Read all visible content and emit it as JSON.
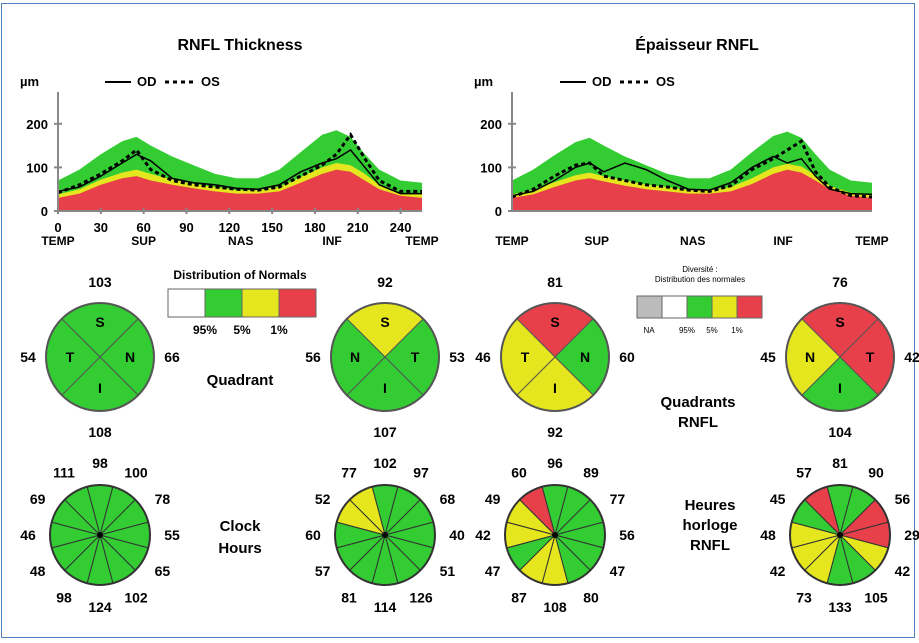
{
  "colors": {
    "green": "#33cc33",
    "yellow": "#e6e61e",
    "red": "#e8404a",
    "white": "#ffffff",
    "gray": "#bbbbbb",
    "border": "#4f81bd"
  },
  "chart_data": [
    {
      "type": "area",
      "title": "RNFL Thickness",
      "ylabel": "µm",
      "legend": [
        {
          "name": "OD",
          "style": "solid"
        },
        {
          "name": "OS",
          "style": "dotted"
        }
      ],
      "yticks": [
        "0",
        "100",
        "200"
      ],
      "ylim": [
        0,
        250
      ],
      "xlim": [
        0,
        255
      ],
      "xticks": [
        "0",
        "30",
        "60",
        "90",
        "120",
        "150",
        "180",
        "210",
        "240"
      ],
      "xtick_values": [
        0,
        30,
        60,
        90,
        120,
        150,
        180,
        210,
        240
      ],
      "xregions": [
        "TEMP",
        "SUP",
        "NAS",
        "INF",
        "TEMP"
      ],
      "xregion_values": [
        0,
        60,
        128,
        192,
        255
      ],
      "x": [
        0,
        15,
        30,
        45,
        55,
        65,
        80,
        95,
        110,
        125,
        140,
        155,
        170,
        185,
        195,
        205,
        215,
        225,
        240,
        255
      ],
      "bands": {
        "red_top": [
          30,
          40,
          60,
          75,
          80,
          70,
          60,
          52,
          45,
          40,
          40,
          45,
          65,
          85,
          95,
          90,
          70,
          50,
          35,
          30
        ],
        "yellow_top": [
          38,
          50,
          72,
          88,
          95,
          85,
          72,
          62,
          55,
          48,
          48,
          55,
          78,
          100,
          110,
          105,
          85,
          60,
          42,
          38
        ],
        "green_top": [
          70,
          95,
          130,
          160,
          170,
          150,
          125,
          105,
          85,
          75,
          75,
          95,
          135,
          175,
          185,
          170,
          130,
          95,
          70,
          65
        ]
      },
      "series": [
        {
          "name": "OD",
          "values": [
            45,
            55,
            80,
            110,
            130,
            115,
            75,
            65,
            60,
            52,
            50,
            60,
            90,
            110,
            120,
            140,
            100,
            60,
            40,
            40
          ]
        },
        {
          "name": "OS",
          "values": [
            42,
            60,
            85,
            115,
            140,
            95,
            70,
            60,
            55,
            50,
            48,
            55,
            80,
            105,
            130,
            175,
            120,
            70,
            45,
            45
          ]
        }
      ]
    },
    {
      "type": "area",
      "title": "Épaisseur RNFL",
      "ylabel": "µm",
      "legend": [
        {
          "name": "OD",
          "style": "solid"
        },
        {
          "name": "OS",
          "style": "dotted"
        }
      ],
      "yticks": [
        "0",
        "100",
        "200"
      ],
      "ylim": [
        0,
        250
      ],
      "xlim": [
        0,
        255
      ],
      "xticks": [],
      "xtick_values": [],
      "xregions": [
        "TEMP",
        "SUP",
        "NAS",
        "INF",
        "TEMP"
      ],
      "xregion_values": [
        0,
        60,
        128,
        192,
        255
      ],
      "x": [
        0,
        15,
        30,
        45,
        55,
        65,
        80,
        95,
        110,
        125,
        140,
        155,
        170,
        185,
        195,
        205,
        215,
        225,
        240,
        255
      ],
      "bands": {
        "red_top": [
          30,
          38,
          55,
          70,
          75,
          68,
          58,
          50,
          45,
          40,
          40,
          45,
          62,
          85,
          95,
          88,
          70,
          50,
          35,
          30
        ],
        "yellow_top": [
          38,
          48,
          66,
          82,
          88,
          80,
          70,
          60,
          55,
          48,
          48,
          55,
          75,
          100,
          108,
          102,
          82,
          58,
          42,
          38
        ],
        "green_top": [
          70,
          95,
          128,
          158,
          168,
          150,
          125,
          105,
          85,
          75,
          75,
          95,
          135,
          172,
          182,
          168,
          130,
          95,
          70,
          65
        ]
      },
      "series": [
        {
          "name": "OD",
          "values": [
            35,
            45,
            70,
            100,
            110,
            90,
            110,
            95,
            70,
            50,
            48,
            65,
            100,
            125,
            110,
            120,
            80,
            50,
            40,
            38
          ]
        },
        {
          "name": "OS",
          "values": [
            32,
            50,
            80,
            105,
            110,
            80,
            70,
            60,
            55,
            48,
            45,
            58,
            95,
            120,
            140,
            160,
            90,
            55,
            35,
            32
          ]
        }
      ]
    }
  ],
  "legend_normals": {
    "title": "Distribution of Normals",
    "labels": [
      "95%",
      "5%",
      "1%"
    ]
  },
  "legend_fr": {
    "title_line1": "Diversité :",
    "title_line2": "Distribution des normales",
    "labels": [
      "NA",
      "95%",
      "5%",
      "1%"
    ]
  },
  "side_labels": {
    "quadrant": "Quadrant",
    "clock_hours_1": "Clock",
    "clock_hours_2": "Hours",
    "quadrants_fr_1": "Quadrants",
    "quadrants_fr_2": "RNFL",
    "clock_fr_1": "Heures",
    "clock_fr_2": "horloge",
    "clock_fr_3": "RNFL"
  },
  "quadrants": [
    {
      "top": {
        "letter": "S",
        "value": "103",
        "color": "green"
      },
      "right": {
        "letter": "N",
        "value": "66",
        "color": "green"
      },
      "bottom": {
        "letter": "I",
        "value": "108",
        "color": "green"
      },
      "left": {
        "letter": "T",
        "value": "54",
        "color": "green"
      }
    },
    {
      "top": {
        "letter": "S",
        "value": "92",
        "color": "yellow"
      },
      "right": {
        "letter": "T",
        "value": "53",
        "color": "green"
      },
      "bottom": {
        "letter": "I",
        "value": "107",
        "color": "green"
      },
      "left": {
        "letter": "N",
        "value": "56",
        "color": "green"
      }
    },
    {
      "top": {
        "letter": "S",
        "value": "81",
        "color": "red"
      },
      "right": {
        "letter": "N",
        "value": "60",
        "color": "green"
      },
      "bottom": {
        "letter": "I",
        "value": "92",
        "color": "yellow"
      },
      "left": {
        "letter": "T",
        "value": "46",
        "color": "yellow"
      }
    },
    {
      "top": {
        "letter": "S",
        "value": "76",
        "color": "red"
      },
      "right": {
        "letter": "T",
        "value": "42",
        "color": "red"
      },
      "bottom": {
        "letter": "I",
        "value": "104",
        "color": "green"
      },
      "left": {
        "letter": "N",
        "value": "45",
        "color": "yellow"
      }
    }
  ],
  "clocks": [
    {
      "values": [
        "98",
        "100",
        "78",
        "55",
        "65",
        "102",
        "124",
        "98",
        "48",
        "46",
        "69",
        "111"
      ],
      "colors": [
        "green",
        "green",
        "green",
        "green",
        "green",
        "green",
        "green",
        "green",
        "green",
        "green",
        "green",
        "green"
      ]
    },
    {
      "values": [
        "102",
        "97",
        "68",
        "40",
        "51",
        "126",
        "114",
        "81",
        "57",
        "60",
        "52",
        "77"
      ],
      "colors": [
        "green",
        "green",
        "green",
        "green",
        "green",
        "green",
        "green",
        "green",
        "green",
        "green",
        "yellow",
        "yellow"
      ]
    },
    {
      "values": [
        "96",
        "89",
        "77",
        "56",
        "47",
        "80",
        "108",
        "87",
        "47",
        "42",
        "49",
        "60"
      ],
      "colors": [
        "green",
        "green",
        "green",
        "green",
        "green",
        "green",
        "yellow",
        "yellow",
        "green",
        "yellow",
        "yellow",
        "red"
      ]
    },
    {
      "values": [
        "81",
        "90",
        "56",
        "29",
        "42",
        "105",
        "133",
        "73",
        "42",
        "48",
        "45",
        "57"
      ],
      "colors": [
        "green",
        "green",
        "red",
        "red",
        "yellow",
        "green",
        "green",
        "yellow",
        "yellow",
        "yellow",
        "green",
        "red"
      ]
    }
  ]
}
